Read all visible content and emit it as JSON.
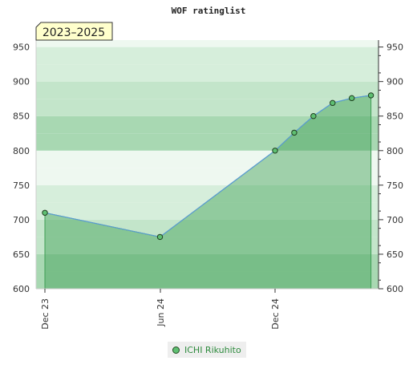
{
  "chart_data": {
    "type": "area",
    "title": "WOF ratinglist",
    "period_label": "2023–2025",
    "xlabel": "",
    "ylabel": "",
    "x_ticks": [
      "Dec 23",
      "Jun 24",
      "Dec 24"
    ],
    "y_ticks": [
      600,
      650,
      700,
      750,
      800,
      850,
      900,
      950
    ],
    "ylim": [
      600,
      960
    ],
    "grid": true,
    "legend_position": "bottom-center",
    "series": [
      {
        "name": "ICHI Rikuhito",
        "color": "#5fbf72",
        "line_color": "#5b9bd5",
        "points": [
          {
            "x": "2023-12",
            "y": 710
          },
          {
            "x": "2024-06",
            "y": 675
          },
          {
            "x": "2024-12",
            "y": 800
          },
          {
            "x": "2025-01",
            "y": 826
          },
          {
            "x": "2025-02",
            "y": 850
          },
          {
            "x": "2025-03",
            "y": 869
          },
          {
            "x": "2025-04",
            "y": 876
          },
          {
            "x": "2025-05",
            "y": 880
          }
        ]
      }
    ]
  }
}
